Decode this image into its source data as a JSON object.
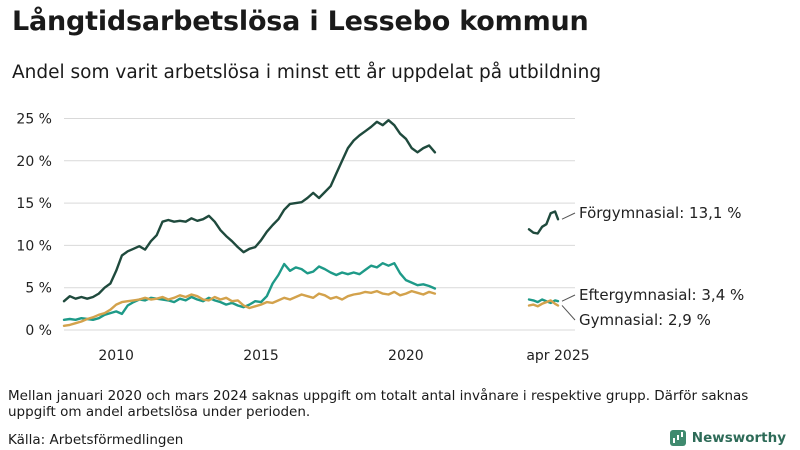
{
  "title": "Långtidsarbetslösa i Lessebo kommun",
  "subtitle": "Andel som varit arbetslösa i minst ett år uppdelat på utbildning",
  "note": "Mellan januari 2020 och mars 2024 saknas uppgift om totalt antal invånare i respektive grupp. Därför saknas uppgift om andel arbetslösa under perioden.",
  "source": "Källa: Arbetsförmedlingen",
  "brand": "Newsworthy",
  "colors": {
    "forgymnasial": "#1f4a3d",
    "eftergymnasial": "#1e9a88",
    "gymnasial": "#d3a24c",
    "brand": "#3f8a6e"
  },
  "chart_data": {
    "type": "line",
    "xlim": [
      2008.2,
      2026.7
    ],
    "ylim": [
      0,
      26
    ],
    "y_ticks": [
      0,
      5,
      10,
      15,
      20,
      25
    ],
    "y_tick_labels": [
      "0 %",
      "5 %",
      "10 %",
      "15 %",
      "20 %",
      "25 %"
    ],
    "x_ticks": [
      2010,
      2015,
      2020,
      2025.25
    ],
    "x_tick_labels": [
      "2010",
      "2015",
      "2020",
      "apr 2025"
    ],
    "grid": "horizontal",
    "series": [
      {
        "name": "Förgymnasial",
        "color": "#1f4a3d",
        "end_label": "Förgymnasial: 13,1 %",
        "x": [
          2008.2,
          2008.4,
          2008.6,
          2008.8,
          2009.0,
          2009.2,
          2009.4,
          2009.6,
          2009.8,
          2010.0,
          2010.2,
          2010.4,
          2010.6,
          2010.8,
          2011.0,
          2011.2,
          2011.4,
          2011.6,
          2011.8,
          2012.0,
          2012.2,
          2012.4,
          2012.6,
          2012.8,
          2013.0,
          2013.2,
          2013.4,
          2013.6,
          2013.8,
          2014.0,
          2014.2,
          2014.4,
          2014.6,
          2014.8,
          2015.0,
          2015.2,
          2015.4,
          2015.6,
          2015.8,
          2016.0,
          2016.2,
          2016.4,
          2016.6,
          2016.8,
          2017.0,
          2017.2,
          2017.4,
          2017.6,
          2017.8,
          2018.0,
          2018.2,
          2018.4,
          2018.6,
          2018.8,
          2019.0,
          2019.2,
          2019.4,
          2019.6,
          2019.8,
          2020.0,
          2020.2,
          2020.4,
          2020.6,
          2020.8,
          2021.0,
          null,
          2024.25,
          2024.4,
          2024.55,
          2024.7,
          2024.85,
          2025.0,
          2025.15,
          2025.25
        ],
        "values": [
          3.4,
          4.0,
          3.7,
          3.9,
          3.7,
          3.9,
          4.3,
          5.0,
          5.5,
          7.0,
          8.8,
          9.3,
          9.6,
          9.9,
          9.5,
          10.5,
          11.2,
          12.8,
          13.0,
          12.8,
          12.9,
          12.8,
          13.2,
          12.9,
          13.1,
          13.5,
          12.8,
          11.8,
          11.1,
          10.5,
          9.8,
          9.2,
          9.6,
          9.8,
          10.6,
          11.6,
          12.4,
          13.1,
          14.2,
          14.9,
          15.0,
          15.1,
          15.6,
          16.2,
          15.6,
          16.3,
          17.0,
          18.5,
          20.0,
          21.5,
          22.4,
          23.0,
          23.5,
          24.0,
          24.6,
          24.2,
          24.8,
          24.2,
          23.2,
          22.6,
          21.5,
          21.0,
          21.5,
          21.8,
          21.0,
          null,
          11.9,
          11.5,
          11.4,
          12.2,
          12.5,
          13.8,
          14.0,
          13.1
        ]
      },
      {
        "name": "Eftergymnasial",
        "color": "#1e9a88",
        "end_label": "Eftergymnasial:  3,4 %",
        "x": [
          2008.2,
          2008.4,
          2008.6,
          2008.8,
          2009.0,
          2009.2,
          2009.4,
          2009.6,
          2009.8,
          2010.0,
          2010.2,
          2010.4,
          2010.6,
          2010.8,
          2011.0,
          2011.2,
          2011.4,
          2011.6,
          2011.8,
          2012.0,
          2012.2,
          2012.4,
          2012.6,
          2012.8,
          2013.0,
          2013.2,
          2013.4,
          2013.6,
          2013.8,
          2014.0,
          2014.2,
          2014.4,
          2014.6,
          2014.8,
          2015.0,
          2015.2,
          2015.4,
          2015.6,
          2015.8,
          2016.0,
          2016.2,
          2016.4,
          2016.6,
          2016.8,
          2017.0,
          2017.2,
          2017.4,
          2017.6,
          2017.8,
          2018.0,
          2018.2,
          2018.4,
          2018.6,
          2018.8,
          2019.0,
          2019.2,
          2019.4,
          2019.6,
          2019.8,
          2020.0,
          2020.2,
          2020.4,
          2020.6,
          2020.8,
          2021.0,
          null,
          2024.25,
          2024.4,
          2024.55,
          2024.7,
          2024.85,
          2025.0,
          2025.15,
          2025.25
        ],
        "values": [
          1.2,
          1.3,
          1.2,
          1.4,
          1.3,
          1.2,
          1.4,
          1.8,
          2.0,
          2.2,
          1.9,
          2.9,
          3.3,
          3.6,
          3.5,
          3.8,
          3.7,
          3.6,
          3.5,
          3.3,
          3.7,
          3.5,
          3.9,
          3.6,
          3.4,
          3.8,
          3.5,
          3.3,
          3.0,
          3.2,
          2.9,
          2.7,
          3.0,
          3.4,
          3.3,
          4.0,
          5.5,
          6.5,
          7.8,
          7.0,
          7.4,
          7.2,
          6.7,
          6.9,
          7.5,
          7.2,
          6.8,
          6.5,
          6.8,
          6.6,
          6.8,
          6.6,
          7.1,
          7.6,
          7.4,
          7.9,
          7.6,
          7.9,
          6.7,
          5.9,
          5.6,
          5.3,
          5.4,
          5.2,
          4.9,
          null,
          3.6,
          3.5,
          3.3,
          3.6,
          3.4,
          3.2,
          3.5,
          3.4
        ]
      },
      {
        "name": "Gymnasial",
        "color": "#d3a24c",
        "end_label": "Gymnasial:  2,9 %",
        "x": [
          2008.2,
          2008.4,
          2008.6,
          2008.8,
          2009.0,
          2009.2,
          2009.4,
          2009.6,
          2009.8,
          2010.0,
          2010.2,
          2010.4,
          2010.6,
          2010.8,
          2011.0,
          2011.2,
          2011.4,
          2011.6,
          2011.8,
          2012.0,
          2012.2,
          2012.4,
          2012.6,
          2012.8,
          2013.0,
          2013.2,
          2013.4,
          2013.6,
          2013.8,
          2014.0,
          2014.2,
          2014.4,
          2014.6,
          2014.8,
          2015.0,
          2015.2,
          2015.4,
          2015.6,
          2015.8,
          2016.0,
          2016.2,
          2016.4,
          2016.6,
          2016.8,
          2017.0,
          2017.2,
          2017.4,
          2017.6,
          2017.8,
          2018.0,
          2018.2,
          2018.4,
          2018.6,
          2018.8,
          2019.0,
          2019.2,
          2019.4,
          2019.6,
          2019.8,
          2020.0,
          2020.2,
          2020.4,
          2020.6,
          2020.8,
          2021.0,
          null,
          2024.25,
          2024.4,
          2024.55,
          2024.7,
          2024.85,
          2025.0,
          2025.15,
          2025.25
        ],
        "values": [
          0.5,
          0.6,
          0.8,
          1.0,
          1.3,
          1.5,
          1.8,
          2.0,
          2.4,
          3.0,
          3.3,
          3.4,
          3.5,
          3.6,
          3.8,
          3.6,
          3.7,
          3.9,
          3.6,
          3.8,
          4.1,
          3.9,
          4.2,
          4.0,
          3.6,
          3.5,
          3.9,
          3.6,
          3.8,
          3.4,
          3.5,
          2.9,
          2.6,
          2.8,
          3.0,
          3.3,
          3.2,
          3.5,
          3.8,
          3.6,
          3.9,
          4.2,
          4.0,
          3.8,
          4.3,
          4.1,
          3.7,
          3.9,
          3.6,
          4.0,
          4.2,
          4.3,
          4.5,
          4.4,
          4.6,
          4.3,
          4.2,
          4.5,
          4.1,
          4.3,
          4.6,
          4.4,
          4.2,
          4.5,
          4.3,
          null,
          2.9,
          3.0,
          2.8,
          3.1,
          3.3,
          3.5,
          3.1,
          2.9
        ]
      }
    ]
  }
}
